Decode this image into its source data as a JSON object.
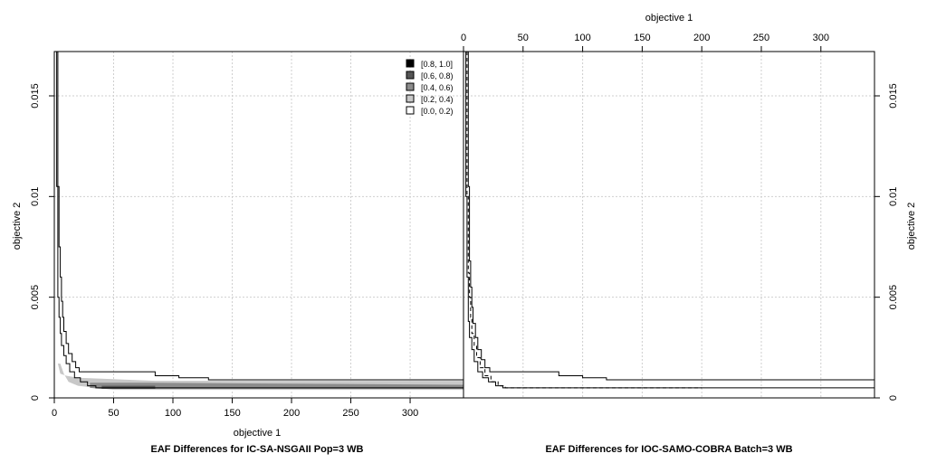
{
  "chart_data": {
    "type": "line",
    "x_axis_label": "objective 1",
    "y_axis_label": "objective 2",
    "xlim": [
      0,
      345
    ],
    "ylim": [
      0,
      0.0172
    ],
    "x_ticks": [
      {
        "value": 0,
        "label": "0"
      },
      {
        "value": 50,
        "label": "50"
      },
      {
        "value": 100,
        "label": "100"
      },
      {
        "value": 150,
        "label": "150"
      },
      {
        "value": 200,
        "label": "200"
      },
      {
        "value": 250,
        "label": "250"
      },
      {
        "value": 300,
        "label": "300"
      }
    ],
    "y_ticks": [
      {
        "value": 0,
        "label": "0"
      },
      {
        "value": 0.005,
        "label": "0.005"
      },
      {
        "value": 0.01,
        "label": "0.01"
      },
      {
        "value": 0.015,
        "label": "0.015"
      }
    ],
    "grid": true,
    "legend_position": "top-right of left panel",
    "legend": [
      {
        "label": "[0.8, 1.0]",
        "color": "#000000"
      },
      {
        "label": "[0.6, 0.8)",
        "color": "#555555"
      },
      {
        "label": "[0.4, 0.6)",
        "color": "#8c8c8c"
      },
      {
        "label": "[0.2, 0.4)",
        "color": "#c8c8c8"
      },
      {
        "label": "[0.0, 0.2)",
        "color": "#ffffff"
      }
    ],
    "panels": [
      {
        "id": "left",
        "title": "EAF Differences for IC-SA-NSGAII Pop=3 WB",
        "regions": [
          {
            "level": "[0.2, 0.4)",
            "color": "#c8c8c8",
            "points": [
              [
                3,
                0.0017
              ],
              [
                5,
                0.0012
              ],
              [
                10,
                0.0011
              ],
              [
                20,
                0.001
              ],
              [
                85,
                0.00085
              ],
              [
                150,
                0.00085
              ],
              [
                345,
                0.00085
              ],
              [
                345,
                0.0004
              ],
              [
                50,
                0.0004
              ],
              [
                35,
                0.0005
              ],
              [
                20,
                0.0006
              ],
              [
                12,
                0.0008
              ],
              [
                8,
                0.0012
              ],
              [
                5,
                0.0017
              ]
            ]
          },
          {
            "level": "[0.4, 0.6)",
            "color": "#8c8c8c",
            "points": [
              [
                30,
                0.00075
              ],
              [
                80,
                0.00075
              ],
              [
                345,
                0.00065
              ],
              [
                345,
                0.00045
              ],
              [
                80,
                0.00045
              ],
              [
                40,
                0.00045
              ],
              [
                30,
                0.0005
              ]
            ]
          },
          {
            "level": "[0.6, 0.8)",
            "color": "#555555",
            "points": [
              [
                40,
                0.0006
              ],
              [
                85,
                0.0006
              ],
              [
                85,
                0.00045
              ],
              [
                40,
                0.00045
              ]
            ]
          }
        ],
        "attainment_curves": [
          {
            "name": "upper",
            "style": "solid",
            "points": [
              [
                3,
                0.0172
              ],
              [
                3,
                0.0145
              ],
              [
                3,
                0.0105
              ],
              [
                4,
                0.009
              ],
              [
                4,
                0.0075
              ],
              [
                5,
                0.006
              ],
              [
                6,
                0.0048
              ],
              [
                7,
                0.004
              ],
              [
                8,
                0.0033
              ],
              [
                10,
                0.0027
              ],
              [
                12,
                0.0022
              ],
              [
                15,
                0.0018
              ],
              [
                18,
                0.0015
              ],
              [
                21,
                0.0013
              ],
              [
                80,
                0.0013
              ],
              [
                85,
                0.0011
              ],
              [
                105,
                0.001
              ],
              [
                130,
                0.0009
              ],
              [
                345,
                0.0009
              ]
            ]
          },
          {
            "name": "lower",
            "style": "solid",
            "points": [
              [
                2,
                0.0172
              ],
              [
                2,
                0.0145
              ],
              [
                2,
                0.0105
              ],
              [
                3,
                0.0085
              ],
              [
                3,
                0.0065
              ],
              [
                3,
                0.005
              ],
              [
                4,
                0.004
              ],
              [
                5,
                0.0032
              ],
              [
                6,
                0.0026
              ],
              [
                8,
                0.0021
              ],
              [
                10,
                0.0017
              ],
              [
                13,
                0.0013
              ],
              [
                17,
                0.001
              ],
              [
                22,
                0.0008
              ],
              [
                28,
                0.0006
              ],
              [
                35,
                0.0005
              ],
              [
                345,
                0.0005
              ]
            ]
          }
        ]
      },
      {
        "id": "right",
        "title": "EAF Differences for IOC-SAMO-COBRA Batch=3 WB",
        "regions": [],
        "attainment_curves": [
          {
            "name": "upper",
            "style": "solid",
            "points": [
              [
                4,
                0.0172
              ],
              [
                4,
                0.014
              ],
              [
                4,
                0.0105
              ],
              [
                5,
                0.0085
              ],
              [
                5,
                0.0068
              ],
              [
                6,
                0.0055
              ],
              [
                7,
                0.0045
              ],
              [
                8,
                0.0037
              ],
              [
                10,
                0.003
              ],
              [
                12,
                0.0024
              ],
              [
                15,
                0.0019
              ],
              [
                18,
                0.0015
              ],
              [
                22,
                0.0013
              ],
              [
                70,
                0.0013
              ],
              [
                80,
                0.0011
              ],
              [
                100,
                0.001
              ],
              [
                120,
                0.0009
              ],
              [
                345,
                0.0009
              ]
            ]
          },
          {
            "name": "median",
            "style": "dashed",
            "points": [
              [
                3,
                0.0172
              ],
              [
                3,
                0.014
              ],
              [
                3,
                0.01
              ],
              [
                4,
                0.008
              ],
              [
                4,
                0.0062
              ],
              [
                5,
                0.005
              ],
              [
                6,
                0.004
              ],
              [
                7,
                0.0032
              ],
              [
                9,
                0.0026
              ],
              [
                11,
                0.002
              ],
              [
                14,
                0.0015
              ],
              [
                18,
                0.0011
              ],
              [
                23,
                0.0008
              ],
              [
                29,
                0.0006
              ],
              [
                35,
                0.0005
              ],
              [
                200,
                0.0005
              ]
            ]
          },
          {
            "name": "lower",
            "style": "solid",
            "points": [
              [
                2,
                0.0172
              ],
              [
                2,
                0.014
              ],
              [
                2,
                0.01
              ],
              [
                3,
                0.008
              ],
              [
                3,
                0.006
              ],
              [
                4,
                0.0048
              ],
              [
                4,
                0.0038
              ],
              [
                5,
                0.003
              ],
              [
                7,
                0.0024
              ],
              [
                9,
                0.0018
              ],
              [
                12,
                0.0013
              ],
              [
                16,
                0.001
              ],
              [
                21,
                0.0008
              ],
              [
                27,
                0.0006
              ],
              [
                33,
                0.0005
              ],
              [
                345,
                0.0005
              ]
            ]
          }
        ]
      }
    ]
  }
}
